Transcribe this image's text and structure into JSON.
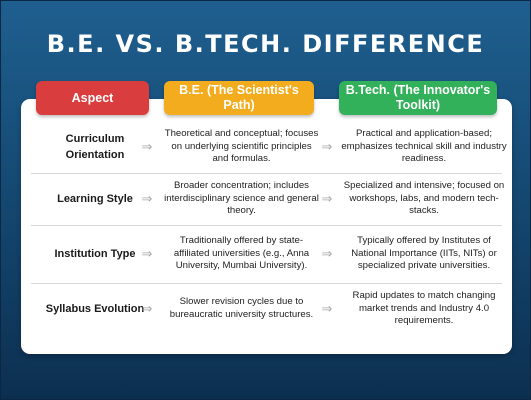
{
  "title": "B.E. VS. B.TECH. DIFFERENCE",
  "headers": {
    "aspect": "Aspect",
    "be": "B.E. (The Scientist's Path)",
    "btech": "B.Tech. (The Innovator's Toolkit)"
  },
  "arrow_glyph": "⇒",
  "rows": [
    {
      "aspect": "Curriculum Orientation",
      "be": "Theoretical and conceptual; focuses on underlying scientific principles and formulas.",
      "btech": "Practical and application-based; emphasizes technical skill and industry readiness."
    },
    {
      "aspect": "Learning Style",
      "be": "Broader concentration; includes interdisciplinary science and general theory.",
      "btech": "Specialized and intensive; focused on workshops, labs, and modern tech-stacks."
    },
    {
      "aspect": "Institution Type",
      "be": "Traditionally offered by state-affiliated universities (e.g., Anna University, Mumbai University).",
      "btech": "Typically offered by Institutes of National Importance (IITs, NITs) or specialized private universities."
    },
    {
      "aspect": "Syllabus Evolution",
      "be": "Slower revision cycles due to bureaucratic university structures.",
      "btech": "Rapid updates to match changing market trends and Industry 4.0 requirements."
    }
  ],
  "colors": {
    "aspect_header": "#d93d3d",
    "be_header": "#f2ac1e",
    "btech_header": "#32b05a",
    "background": "#154a74"
  }
}
